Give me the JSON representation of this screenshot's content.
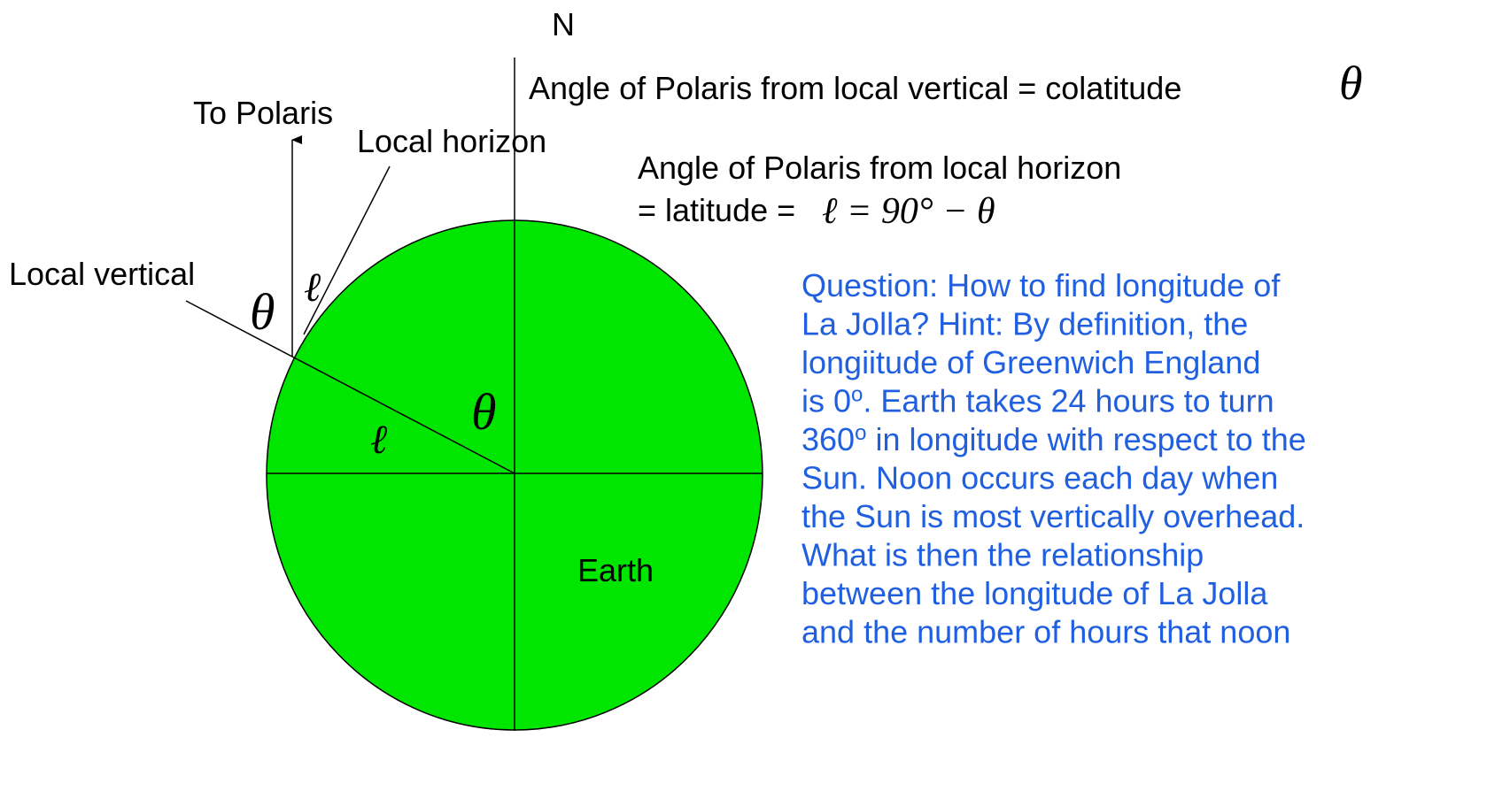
{
  "labels": {
    "north": "N",
    "to_polaris": "To Polaris",
    "local_horizon": "Local horizon",
    "local_vertical": "Local vertical",
    "earth": "Earth",
    "colatitude_note": "Angle of Polaris from local vertical = colatitude",
    "colatitude_symbol": "θ",
    "latitude_note_1": "Angle of Polaris from local horizon",
    "latitude_note_2": "= latitude = ",
    "latitude_formula": "ℓ = 90° − θ",
    "theta_outer": "θ",
    "ell_outer": "ℓ",
    "theta_center": "θ",
    "ell_center": "ℓ"
  },
  "question": {
    "lines": [
      {
        "text": "Question: How to find longitude of"
      },
      {
        "text": "La Jolla?  Hint: By definition, the"
      },
      {
        "text": "longiitude of Greenwich England"
      },
      {
        "text": "is 0",
        "sup": "o",
        "after": ".  Earth takes 24 hours to turn"
      },
      {
        "text": "360",
        "sup": "o",
        "after": " in longitude with respect to the"
      },
      {
        "text": "Sun.  Noon occurs each day when"
      },
      {
        "text": "the Sun is most vertically overhead."
      },
      {
        "text": "What is then the relationship"
      },
      {
        "text": "between the longitude of La Jolla"
      },
      {
        "text": "and the number of hours that noon"
      }
    ]
  }
}
